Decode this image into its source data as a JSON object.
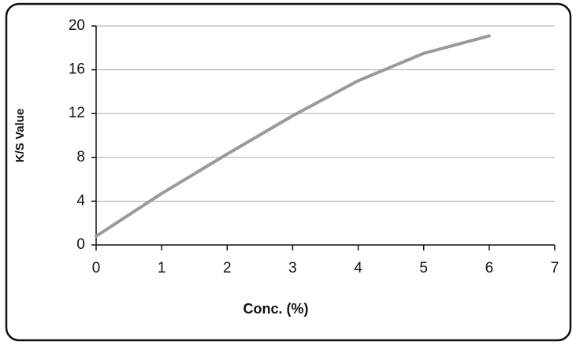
{
  "chart_data": {
    "type": "line",
    "x": [
      0,
      1,
      2,
      3,
      4,
      5,
      6
    ],
    "series": [
      {
        "name": "K/S",
        "color": "#9a9a9a",
        "values": [
          0.8,
          4.7,
          8.3,
          11.8,
          15.0,
          17.5,
          19.1
        ]
      }
    ],
    "xlabel": "Conc. (%)",
    "ylabel": "K/S Value",
    "xlim": [
      0,
      7
    ],
    "xticks": [
      0,
      1,
      2,
      3,
      4,
      5,
      6,
      7
    ],
    "ylim": [
      0,
      20
    ],
    "yticks": [
      0,
      4,
      8,
      12,
      16,
      20
    ],
    "grid": true
  }
}
